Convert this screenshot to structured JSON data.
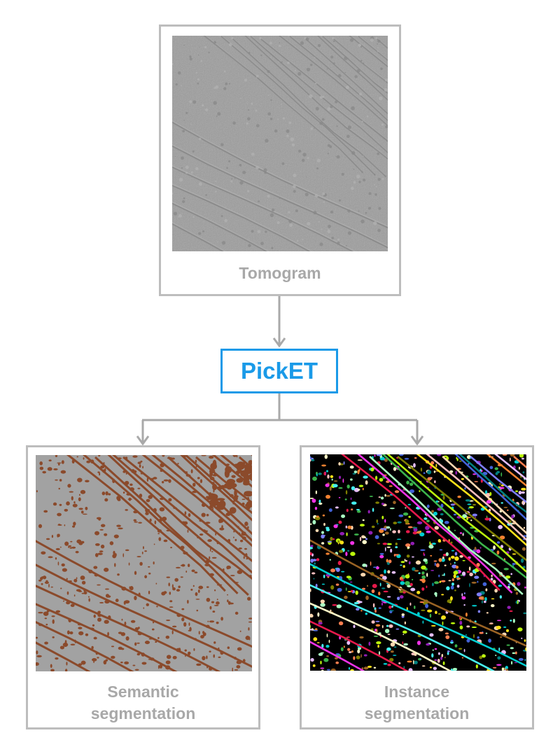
{
  "tomogram": {
    "caption": "Tomogram"
  },
  "method": {
    "label": "PickET"
  },
  "semantic": {
    "caption_line1": "Semantic",
    "caption_line2": "segmentation"
  },
  "instance": {
    "caption_line1": "Instance",
    "caption_line2": "segmentation"
  },
  "colors": {
    "frame_border": "#bdbdbd",
    "caption_text": "#a8a8a8",
    "accent": "#1a9ae8",
    "connector": "#a9a9a9",
    "tomogram_bg": "#9c9c9c",
    "semantic_bg": "#a2a2a2",
    "semantic_fg": "#8b4a2b",
    "instance_bg": "#000000"
  },
  "instance_palette": [
    "#e6194b",
    "#3cb44b",
    "#ffe119",
    "#4363d8",
    "#f58231",
    "#911eb4",
    "#46f0f0",
    "#f032e6",
    "#bcf60c",
    "#fabebe",
    "#008080",
    "#e6beff",
    "#9a6324",
    "#fffac8",
    "#aaffc3",
    "#808000",
    "#ffd8b1",
    "#7f7fff",
    "#ff7f50",
    "#00ced1"
  ]
}
